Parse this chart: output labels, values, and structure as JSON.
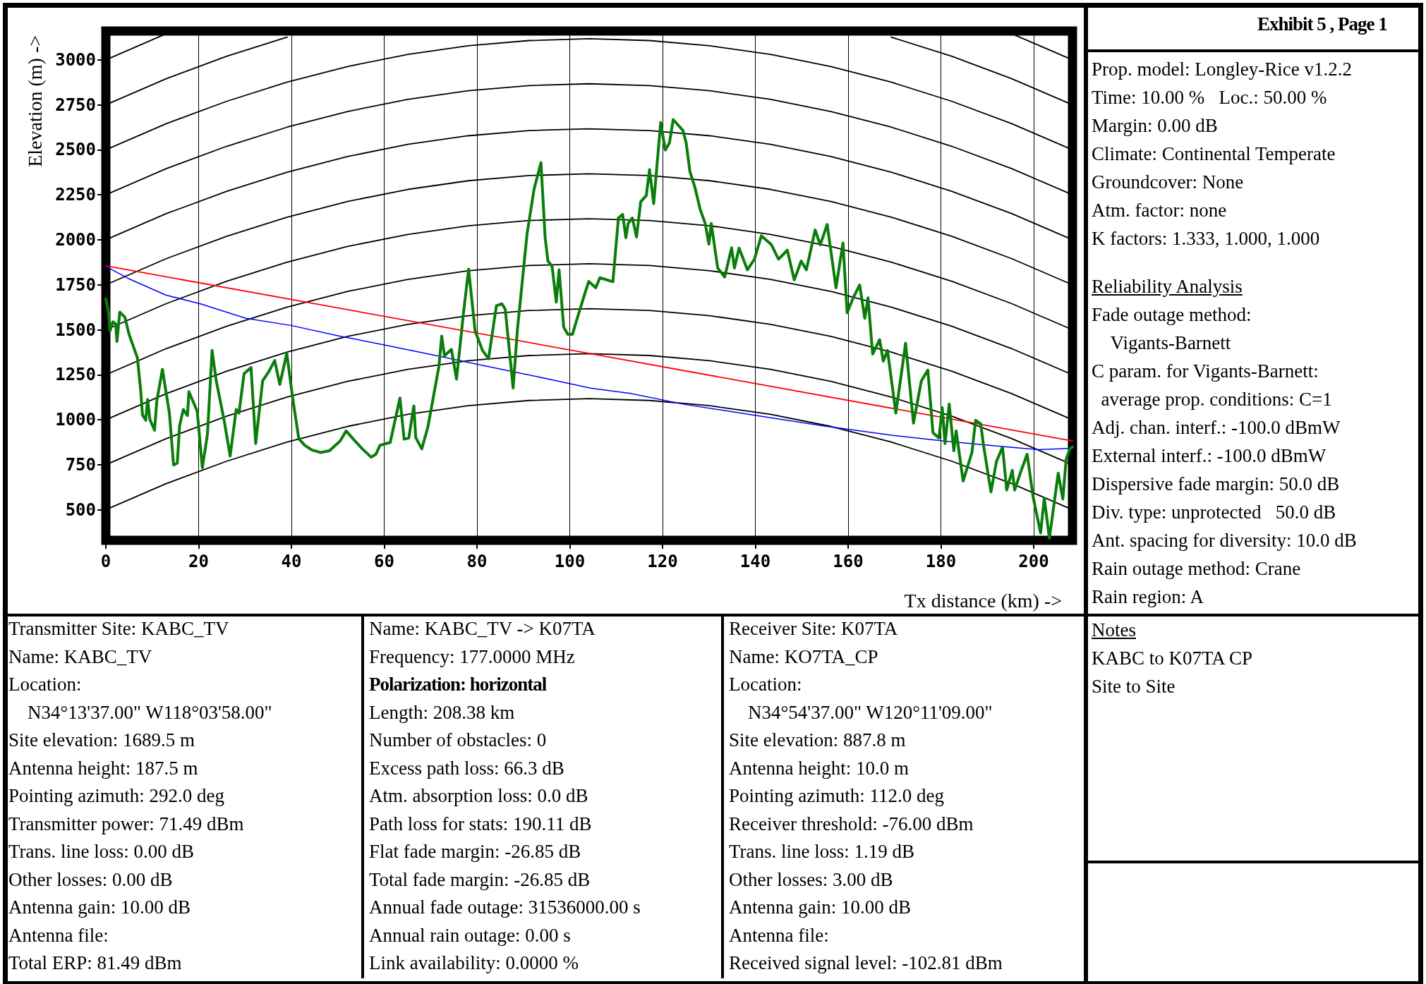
{
  "chart_data": {
    "type": "line",
    "xlabel": "Tx distance (km) ->",
    "ylabel": "Elevation (m) ->",
    "xlim": [
      0,
      208.38
    ],
    "ylim": [
      330,
      3160
    ],
    "xticks": [
      0,
      20,
      40,
      60,
      80,
      100,
      120,
      140,
      160,
      180,
      200
    ],
    "yticks": [
      500,
      750,
      1000,
      1250,
      1500,
      1750,
      2000,
      2250,
      2500,
      2750,
      3000
    ],
    "grid": "x",
    "marker": "none",
    "line_style": "solid",
    "x": [
      0,
      13,
      26.1,
      39.1,
      52.1,
      65.1,
      78.1,
      91.2,
      104.2,
      117.2,
      130.2,
      143.3,
      156.3,
      169.3,
      182.3,
      195.3,
      208.38
    ],
    "series": [
      {
        "color": "#000000",
        "values": [
          500,
          645,
          770,
          876,
          963,
          1030,
          1078,
          1107,
          1117,
          1107,
          1078,
          1030,
          963,
          876,
          770,
          645,
          500
        ]
      },
      {
        "color": "#000000",
        "values": [
          750,
          895,
          1020,
          1126,
          1213,
          1280,
          1328,
          1357,
          1367,
          1357,
          1328,
          1280,
          1213,
          1126,
          1020,
          895,
          750
        ]
      },
      {
        "color": "#000000",
        "values": [
          1000,
          1145,
          1270,
          1376,
          1463,
          1530,
          1578,
          1607,
          1617,
          1607,
          1578,
          1530,
          1463,
          1376,
          1270,
          1145,
          1000
        ]
      },
      {
        "color": "#000000",
        "values": [
          1250,
          1395,
          1520,
          1626,
          1713,
          1780,
          1828,
          1857,
          1867,
          1857,
          1828,
          1780,
          1713,
          1626,
          1520,
          1395,
          1250
        ]
      },
      {
        "color": "#000000",
        "values": [
          1500,
          1645,
          1770,
          1876,
          1963,
          2030,
          2078,
          2107,
          2117,
          2107,
          2078,
          2030,
          1963,
          1876,
          1770,
          1645,
          1500
        ]
      },
      {
        "color": "#000000",
        "values": [
          1750,
          1895,
          2020,
          2126,
          2213,
          2280,
          2328,
          2357,
          2367,
          2357,
          2328,
          2280,
          2213,
          2126,
          2020,
          1895,
          1750
        ]
      },
      {
        "color": "#000000",
        "values": [
          2000,
          2145,
          2270,
          2376,
          2463,
          2530,
          2578,
          2607,
          2617,
          2607,
          2578,
          2530,
          2463,
          2376,
          2270,
          2145,
          2000
        ]
      },
      {
        "color": "#000000",
        "values": [
          2250,
          2395,
          2520,
          2626,
          2713,
          2780,
          2828,
          2857,
          2867,
          2857,
          2828,
          2780,
          2713,
          2626,
          2520,
          2395,
          2250
        ]
      },
      {
        "color": "#000000",
        "values": [
          2500,
          2645,
          2770,
          2876,
          2963,
          3030,
          3078,
          3107,
          3117,
          3107,
          3078,
          3030,
          2963,
          2876,
          2770,
          2645,
          2500
        ]
      },
      {
        "color": "#000000",
        "values": [
          2750,
          2895,
          3020,
          3126,
          null,
          null,
          null,
          null,
          null,
          null,
          null,
          null,
          null,
          3126,
          3020,
          2895,
          2750
        ]
      },
      {
        "color": "#000000",
        "values": [
          3000,
          3145,
          null,
          null,
          null,
          null,
          null,
          null,
          null,
          null,
          null,
          null,
          null,
          null,
          null,
          3145,
          3000
        ]
      },
      {
        "color": "#ff0000",
        "x": [
          0,
          208.38
        ],
        "values": [
          1855,
          882
        ]
      },
      {
        "color": "#0000ff",
        "x": [
          0,
          5,
          12.9,
          20.4,
          30.2,
          39.9,
          50.4,
          60.2,
          71.5,
          80.5,
          88,
          95.5,
          104.5,
          113.1,
          124.4,
          139.4,
          154.4,
          169.4,
          180.7,
          192,
          201,
          208.38
        ],
        "values": [
          1852,
          1783,
          1693,
          1644,
          1564,
          1524,
          1465,
          1415,
          1355,
          1306,
          1266,
          1226,
          1176,
          1146,
          1087,
          1027,
          967,
          914,
          882,
          854,
          834,
          842
        ]
      },
      {
        "color": "#0a7d0a",
        "x": [
          0,
          0.6,
          0.9,
          1.5,
          2.1,
          2.4,
          3,
          4.1,
          5,
          6.8,
          7.5,
          7.9,
          8.6,
          9,
          9.5,
          10.5,
          11,
          12.2,
          13.7,
          14.6,
          15.4,
          15.9,
          16.7,
          17.6,
          17.9,
          19.7,
          20.8,
          21.9,
          22.9,
          23.8,
          25.5,
          26.8,
          28.1,
          28.7,
          29.8,
          31.3,
          32.3,
          33.8,
          35.1,
          36.4,
          37.5,
          39,
          40.3,
          41.6,
          42.9,
          44.4,
          46.3,
          48.2,
          50.5,
          51.8,
          53.5,
          55.3,
          57.2,
          58.2,
          59.1,
          61.3,
          63.4,
          64.3,
          65.3,
          66.4,
          66.8,
          68.1,
          69.4,
          71.8,
          72.4,
          73,
          74.5,
          75.6,
          77.1,
          78.2,
          79.6,
          81.2,
          82.5,
          84.2,
          85.4,
          86.1,
          87.8,
          88.7,
          90.8,
          92.3,
          93.8,
          94.7,
          95.3,
          96.2,
          97.1,
          97.7,
          98.7,
          99.6,
          100.6,
          101.5,
          103.4,
          104.1,
          105.6,
          106.5,
          109.3,
          110.5,
          111.4,
          112.1,
          112.6,
          113.5,
          114.4,
          115.3,
          116.5,
          117.2,
          118.1,
          119.6,
          120.6,
          121.5,
          122.3,
          124.4,
          125.1,
          125.9,
          127,
          128.1,
          129.2,
          130,
          130.5,
          131.9,
          133.4,
          134.9,
          135.5,
          136.5,
          138.3,
          139.8,
          141.3,
          143.5,
          145,
          146.9,
          148.4,
          149.9,
          151,
          152,
          152.9,
          154,
          155.5,
          157.4,
          158.9,
          159.8,
          161.2,
          162.5,
          163.6,
          164.3,
          165.3,
          166.8,
          167.6,
          168.5,
          170.3,
          172.4,
          174.1,
          175.8,
          177.2,
          178.3,
          179.6,
          180.3,
          180.9,
          181.8,
          182.8,
          183.3,
          184.8,
          186.7,
          187.5,
          188.6,
          189.2,
          190.8,
          192,
          193.3,
          194.2,
          195.4,
          195.9,
          197.2,
          198.6,
          199.9,
          201.5,
          202.3,
          203.4,
          205.3,
          206.3,
          207,
          207.8,
          208.38
        ],
        "values": [
          1673,
          1594,
          1494,
          1544,
          1534,
          1435,
          1598,
          1570,
          1475,
          1345,
          1166,
          1027,
          997,
          1113,
          1001,
          942,
          1107,
          1280,
          1037,
          749,
          759,
          967,
          1057,
          1023,
          1156,
          1047,
          733,
          918,
          1385,
          1216,
          997,
          798,
          1057,
          1037,
          1256,
          1290,
          868,
          1216,
          1266,
          1329,
          1196,
          1369,
          1117,
          894,
          858,
          832,
          818,
          828,
          882,
          938,
          888,
          838,
          792,
          808,
          858,
          874,
          1121,
          892,
          898,
          1077,
          902,
          838,
          957,
          1296,
          1465,
          1355,
          1391,
          1226,
          1594,
          1837,
          1494,
          1385,
          1339,
          1634,
          1644,
          1614,
          1176,
          1494,
          2032,
          2280,
          2429,
          2012,
          1882,
          1852,
          1654,
          1833,
          1514,
          1475,
          1475,
          1554,
          1713,
          1769,
          1733,
          1789,
          1767,
          2121,
          2141,
          2012,
          2091,
          2121,
          2016,
          2211,
          2246,
          2390,
          2201,
          2652,
          2499,
          2539,
          2668,
          2608,
          2539,
          2380,
          2290,
          2171,
          2091,
          1976,
          2091,
          1843,
          1793,
          1956,
          1843,
          1954,
          1833,
          1892,
          2022,
          1972,
          1892,
          1942,
          1777,
          1882,
          1833,
          1948,
          2055,
          1972,
          2085,
          1733,
          1982,
          1594,
          1683,
          1749,
          1564,
          1677,
          1365,
          1445,
          1325,
          1385,
          1037,
          1425,
          981,
          1216,
          1276,
          928,
          898,
          1067,
          868,
          1087,
          828,
          938,
          659,
          818,
          997,
          977,
          858,
          599,
          769,
          848,
          609,
          719,
          609,
          709,
          808,
          570,
          371,
          564,
          341,
          703,
          560,
          778,
          838,
          850
        ]
      }
    ],
    "annotations": [
      "Exhibit 5 , Page 1",
      "Prop. model: Longley-Rice v1.2.2",
      "Time: 10.00 %   Loc.: 50.00 %",
      "Margin: 0.00 dB",
      "Climate: Continental Temperate",
      "Groundcover: None",
      "Atm. factor: none",
      "K factors: 1.333, 1.000, 1.000",
      "Reliability Analysis",
      "Fade outage method:",
      "    Vigants-Barnett",
      "C param. for Vigants-Barnett:",
      "  average prop. conditions: C=1",
      "Adj. chan. interf.: -100.0 dBmW",
      "External interf.: -100.0 dBmW",
      "Dispersive fade margin: 50.0 dB",
      "Div. type: unprotected   50.0 dB",
      "Ant. spacing for diversity: 10.0 dB",
      "Rain outage method: Crane",
      "Rain region: A",
      "Transmitter Site: KABC_TV",
      "Name: KABC_TV",
      "Location:",
      "    N34°13'37.00\" W118°03'58.00\"",
      "Site elevation: 1689.5 m",
      "Antenna height: 187.5 m",
      "Pointing azimuth: 292.0 deg",
      "Transmitter power: 71.49 dBm",
      "Trans. line loss: 0.00 dB",
      "Other losses: 0.00 dB",
      "Antenna gain: 10.00 dB",
      "Antenna file:",
      "Total ERP: 81.49 dBm",
      "Name: KABC_TV -> K07TA",
      "Frequency: 177.0000 MHz",
      "Polarization: horizontal",
      "Length: 208.38 km",
      "Number of obstacles: 0",
      "Excess path loss: 66.3 dB",
      "Atm. absorption loss: 0.0 dB",
      "Path loss for stats: 190.11 dB",
      "Flat fade margin: -26.85 dB",
      "Total fade margin: -26.85 dB",
      "Annual fade outage: 31536000.00 s",
      "Annual rain outage: 0.00 s",
      "Link availability: 0.0000 %",
      "Receiver Site: K07TA",
      "Name: KO7TA_CP",
      "Location:",
      "    N34°54'37.00\" W120°11'09.00\"",
      "Site elevation: 887.8 m",
      "Antenna height: 10.0 m",
      "Pointing azimuth: 112.0 deg",
      "Receiver threshold: -76.00 dBm",
      "Trans. line loss: 1.19 dB",
      "Other losses: 3.00 dB",
      "Antenna gain: 10.00 dB",
      "Antenna file:",
      "Received signal level: -102.81 dBm",
      "Notes",
      "KABC to K07TA CP",
      "Site to Site"
    ]
  }
}
